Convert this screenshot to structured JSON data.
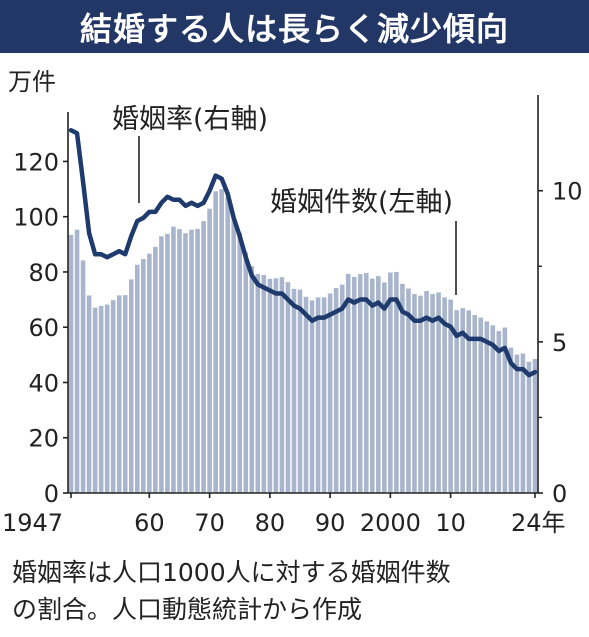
{
  "header": {
    "title": "結婚する人は長らく減少傾向"
  },
  "chart_data": {
    "type": "bar",
    "title": "結婚する人は長らく減少傾向",
    "left_axis_unit": "万件",
    "left_ticks": [
      "0",
      "20",
      "40",
      "60",
      "80",
      "100",
      "120"
    ],
    "right_ticks": [
      "0",
      "5",
      "10"
    ],
    "ylim_left": [
      0,
      135
    ],
    "ylim_right": [
      0,
      12.34
    ],
    "x_ticks": [
      {
        "year": 1947,
        "label": "1947"
      },
      {
        "year": 1960,
        "label": "60"
      },
      {
        "year": 1970,
        "label": "70"
      },
      {
        "year": 1980,
        "label": "80"
      },
      {
        "year": 1990,
        "label": "90"
      },
      {
        "year": 2000,
        "label": "2000"
      },
      {
        "year": 2010,
        "label": "10"
      },
      {
        "year": 2024,
        "label": "24年"
      }
    ],
    "xlim": [
      1947,
      2024
    ],
    "grid": false,
    "series": [
      {
        "name": "婚姻件数(左軸)",
        "axis": "left",
        "type": "bar",
        "color": "#a8b5cc",
        "x": [
          1947,
          1948,
          1949,
          1950,
          1951,
          1952,
          1953,
          1954,
          1955,
          1956,
          1957,
          1958,
          1959,
          1960,
          1961,
          1962,
          1963,
          1964,
          1965,
          1966,
          1967,
          1968,
          1969,
          1970,
          1971,
          1972,
          1973,
          1974,
          1975,
          1976,
          1977,
          1978,
          1979,
          1980,
          1981,
          1982,
          1983,
          1984,
          1985,
          1986,
          1987,
          1988,
          1989,
          1990,
          1991,
          1992,
          1993,
          1994,
          1995,
          1996,
          1997,
          1998,
          1999,
          2000,
          2001,
          2002,
          2003,
          2004,
          2005,
          2006,
          2007,
          2008,
          2009,
          2010,
          2011,
          2012,
          2013,
          2014,
          2015,
          2016,
          2017,
          2018,
          2019,
          2020,
          2021,
          2022,
          2023,
          2024
        ],
        "values": [
          93.4,
          95.3,
          84.2,
          71.5,
          67.1,
          67.7,
          68.2,
          69.8,
          71.5,
          71.6,
          77.3,
          82.6,
          84.7,
          86.6,
          89.1,
          92.9,
          93.8,
          96.4,
          95.5,
          94.0,
          95.3,
          95.6,
          98.4,
          102.9,
          109.2,
          110.0,
          107.2,
          100.0,
          94.2,
          87.1,
          82.1,
          79.3,
          78.9,
          77.5,
          77.7,
          78.1,
          76.3,
          73.9,
          73.6,
          71.0,
          69.7,
          70.8,
          70.8,
          72.2,
          74.2,
          75.4,
          79.3,
          78.2,
          79.2,
          79.6,
          77.6,
          78.5,
          76.2,
          79.8,
          80.0,
          75.7,
          74.0,
          72.0,
          71.4,
          73.1,
          72.0,
          72.6,
          70.8,
          70.0,
          66.2,
          66.9,
          66.1,
          64.4,
          63.5,
          62.1,
          60.7,
          58.6,
          59.9,
          52.6,
          50.1,
          50.5,
          47.5,
          48.5
        ]
      },
      {
        "name": "婚姻率(右軸)",
        "axis": "right",
        "type": "line",
        "color": "#1f3b6d",
        "x": [
          1947,
          1948,
          1949,
          1950,
          1951,
          1952,
          1953,
          1954,
          1955,
          1956,
          1957,
          1958,
          1959,
          1960,
          1961,
          1962,
          1963,
          1964,
          1965,
          1966,
          1967,
          1968,
          1969,
          1970,
          1971,
          1972,
          1973,
          1974,
          1975,
          1976,
          1977,
          1978,
          1979,
          1980,
          1981,
          1982,
          1983,
          1984,
          1985,
          1986,
          1987,
          1988,
          1989,
          1990,
          1991,
          1992,
          1993,
          1994,
          1995,
          1996,
          1997,
          1998,
          1999,
          2000,
          2001,
          2002,
          2003,
          2004,
          2005,
          2006,
          2007,
          2008,
          2009,
          2010,
          2011,
          2012,
          2013,
          2014,
          2015,
          2016,
          2017,
          2018,
          2019,
          2020,
          2021,
          2022,
          2023,
          2024
        ],
        "values": [
          12.0,
          11.9,
          10.3,
          8.6,
          7.9,
          7.9,
          7.8,
          7.9,
          8.0,
          7.9,
          8.5,
          9.0,
          9.1,
          9.3,
          9.3,
          9.6,
          9.8,
          9.7,
          9.7,
          9.5,
          9.6,
          9.5,
          9.6,
          10.0,
          10.5,
          10.4,
          9.9,
          9.1,
          8.5,
          7.8,
          7.2,
          6.9,
          6.8,
          6.7,
          6.6,
          6.6,
          6.4,
          6.2,
          6.1,
          5.9,
          5.7,
          5.8,
          5.8,
          5.9,
          6.0,
          6.1,
          6.4,
          6.3,
          6.4,
          6.4,
          6.2,
          6.3,
          6.1,
          6.4,
          6.4,
          6.0,
          5.9,
          5.7,
          5.7,
          5.8,
          5.7,
          5.8,
          5.6,
          5.5,
          5.2,
          5.3,
          5.1,
          5.1,
          5.1,
          5.0,
          4.9,
          4.7,
          4.8,
          4.3,
          4.1,
          4.1,
          3.9,
          4.0
        ]
      }
    ]
  },
  "footnote": {
    "line1": "婚姻率は人口1000人に対する婚姻件数",
    "line2": "の割合。人口動態統計から作成"
  }
}
